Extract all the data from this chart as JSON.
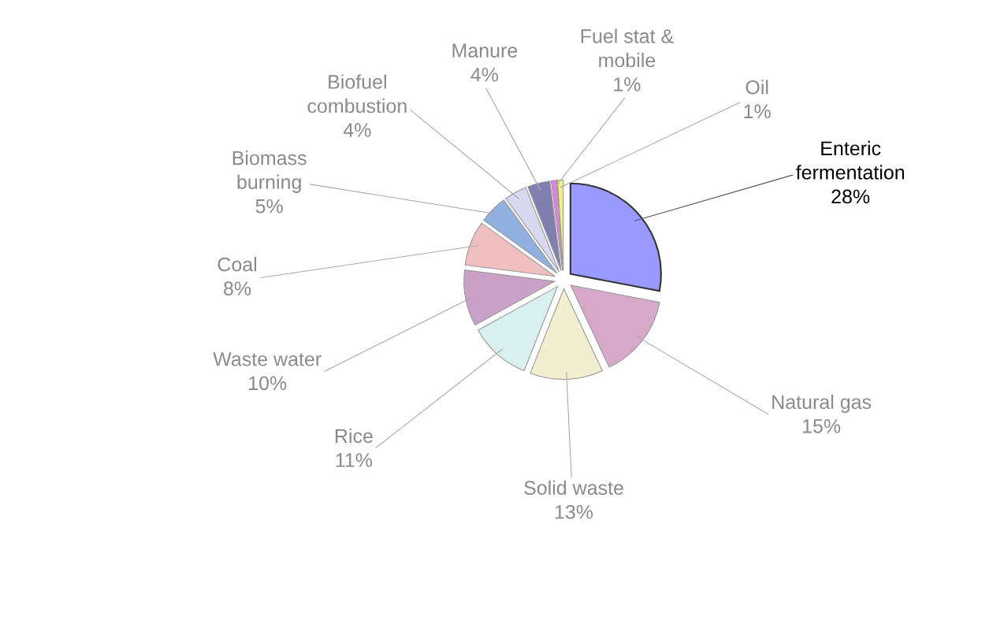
{
  "chart_data": {
    "type": "pie",
    "categories": [
      "Enteric\nfermentation",
      "Natural gas",
      "Solid waste",
      "Rice",
      "Waste water",
      "Coal",
      "Biomass\nburning",
      "Biofuel\ncombustion",
      "Manure",
      "Fuel stat &\nmobile",
      "Oil"
    ],
    "values": [
      28,
      15,
      13,
      11,
      10,
      8,
      5,
      4,
      4,
      1,
      1
    ],
    "value_labels": [
      "28%",
      "15%",
      "13%",
      "11%",
      "10%",
      "8%",
      "5%",
      "4%",
      "4%",
      "1%",
      "1%"
    ],
    "colors": [
      "#9999ff",
      "#d8a8c8",
      "#f0f0d0",
      "#d8f0f0",
      "#c8a0c8",
      "#f0c0c0",
      "#90b0e0",
      "#d8d8f0",
      "#8080b0",
      "#e080e0",
      "#f0f080"
    ],
    "legend": false
  }
}
